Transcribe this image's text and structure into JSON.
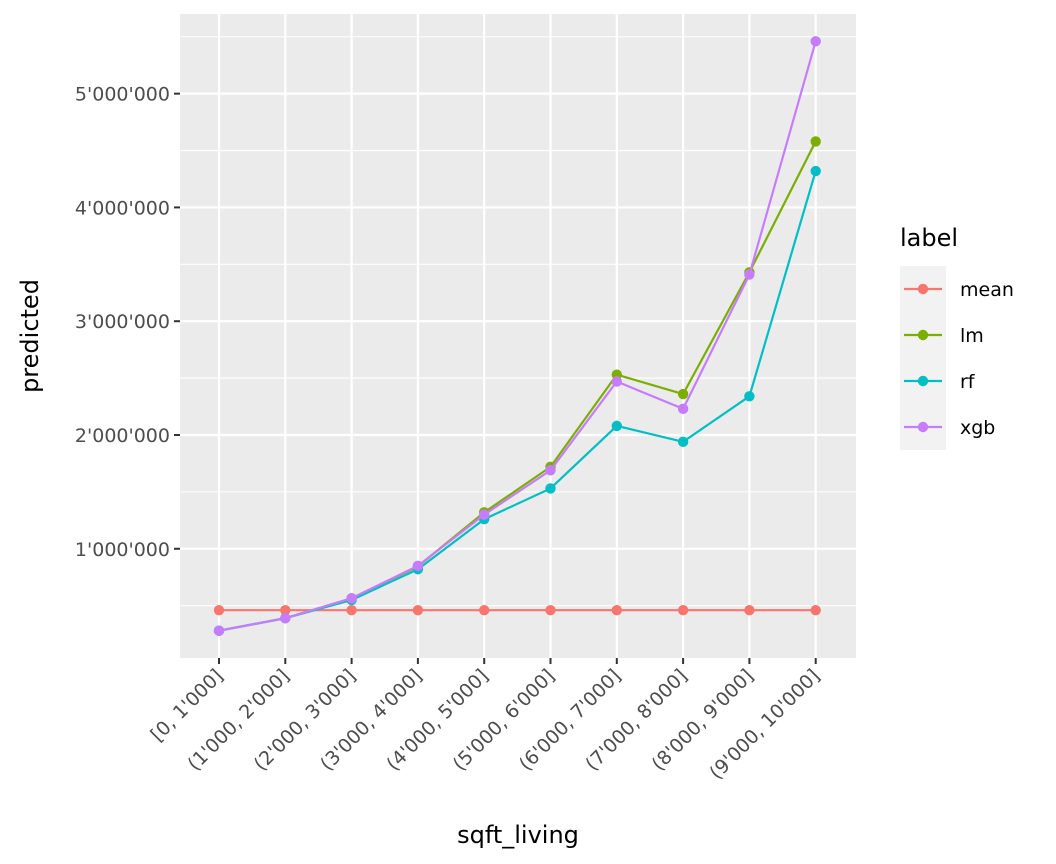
{
  "chart_data": {
    "type": "line",
    "xlabel": "sqft_living",
    "ylabel": "predicted",
    "categories": [
      "[0, 1'000]",
      "(1'000, 2'000]",
      "(2'000, 3'000]",
      "(3'000, 4'000]",
      "(4'000, 5'000]",
      "(5'000, 6'000]",
      "(6'000, 7'000]",
      "(7'000, 8'000]",
      "(8'000, 9'000]",
      "(9'000, 10'000]"
    ],
    "ylim": [
      40000,
      5700000
    ],
    "yticks": [
      1000000,
      2000000,
      3000000,
      4000000,
      5000000
    ],
    "ytick_labels": [
      "1'000'000",
      "2'000'000",
      "3'000'000",
      "4'000'000",
      "5'000'000"
    ],
    "grid": true,
    "legend": {
      "title": "label",
      "position": "right"
    },
    "series": [
      {
        "name": "mean",
        "color": "#F8766D",
        "values": [
          460000,
          460000,
          460000,
          460000,
          460000,
          460000,
          460000,
          460000,
          460000,
          460000
        ]
      },
      {
        "name": "lm",
        "color": "#7CAE00",
        "values": [
          280000,
          390000,
          565000,
          845000,
          1320000,
          1720000,
          2530000,
          2360000,
          3430000,
          4580000
        ]
      },
      {
        "name": "rf",
        "color": "#00BFC4",
        "values": [
          280000,
          390000,
          550000,
          820000,
          1260000,
          1530000,
          2080000,
          1940000,
          2340000,
          4320000
        ]
      },
      {
        "name": "xgb",
        "color": "#C77CFF",
        "values": [
          280000,
          390000,
          565000,
          850000,
          1300000,
          1690000,
          2470000,
          2230000,
          3410000,
          5460000
        ]
      }
    ]
  }
}
